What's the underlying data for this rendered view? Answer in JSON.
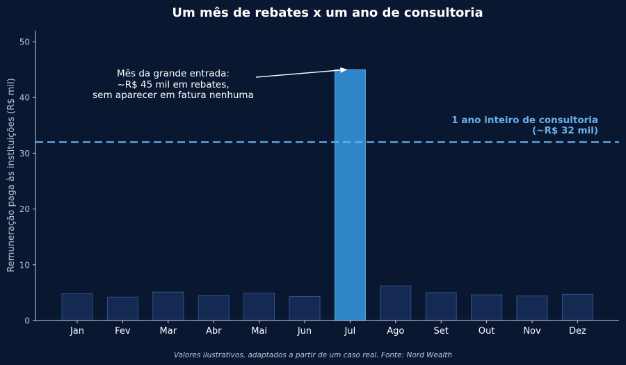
{
  "chart_data": {
    "type": "bar",
    "title": "Um mês de rebates x um ano de consultoria",
    "xlabel": "",
    "ylabel": "Remuneração paga às instituições (R$ mil)",
    "ylim": [
      0,
      52
    ],
    "yticks": [
      0,
      10,
      20,
      30,
      40,
      50
    ],
    "categories": [
      "Jan",
      "Fev",
      "Mar",
      "Abr",
      "Mai",
      "Jun",
      "Jul",
      "Ago",
      "Set",
      "Out",
      "Nov",
      "Dez"
    ],
    "values": [
      4.8,
      4.2,
      5.1,
      4.5,
      4.9,
      4.3,
      45,
      6.2,
      5.0,
      4.6,
      4.4,
      4.7
    ],
    "highlight_category": "Jul",
    "reference_line": {
      "value": 32,
      "label_line1": "1 ano inteiro de consultoria",
      "label_line2": "(~R$ 32 mil)"
    },
    "annotation": {
      "lines": [
        "Mês da grande entrada:",
        "~R$ 45 mil em rebates,",
        "sem aparecer em fatura nenhuma"
      ],
      "target_category": "Jul"
    },
    "footnote": "Valores ilustrativos, adaptados a partir de um caso real. Fonte: Nord Wealth",
    "grid": false,
    "colors": {
      "background": "#0a1730",
      "bar": "#152a52",
      "bar_edge": "#2e5288",
      "highlight": "#2e86c8",
      "highlight_edge": "#5aa8e0",
      "reference": "#6ab0ec",
      "text": "#ffffff",
      "muted": "#b8c4d8",
      "axis": "#c8d0de"
    }
  }
}
